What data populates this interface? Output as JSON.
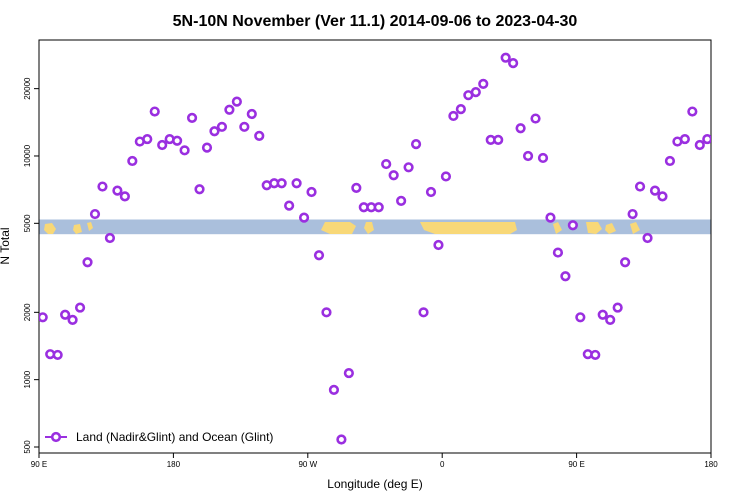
{
  "chart_data": {
    "type": "scatter",
    "title": "5N-10N November (Ver 11.1)   2014-09-06 to 2023-04-30",
    "xlabel": "Longitude (deg E)",
    "ylabel": "N Total",
    "y_scale": "log",
    "ylim": [
      470,
      33000
    ],
    "xlim": [
      0,
      450
    ],
    "x_ticks": [
      {
        "value": 0,
        "label": "90 E"
      },
      {
        "value": 90,
        "label": "180"
      },
      {
        "value": 180,
        "label": "90 W"
      },
      {
        "value": 270,
        "label": "0"
      },
      {
        "value": 360,
        "label": "90 E"
      },
      {
        "value": 450,
        "label": "180"
      }
    ],
    "y_ticks": [
      {
        "value": 500,
        "label": "500"
      },
      {
        "value": 1000,
        "label": "1000"
      },
      {
        "value": 2000,
        "label": "2000"
      },
      {
        "value": 5000,
        "label": "5000"
      },
      {
        "value": 10000,
        "label": "10000"
      },
      {
        "value": 20000,
        "label": "20000"
      }
    ],
    "grid": false,
    "legend_position": "bottom-left",
    "map_band": {
      "y_low": 4470,
      "y_high": 5200,
      "ocean_color": "#aabfdc",
      "land_color": "#f8d878"
    },
    "series": [
      {
        "name": "Land (Nadir&Glint) and Ocean (Glint)",
        "color": "#9a2fe0",
        "x": [
          2.5,
          7.5,
          12.5,
          17.5,
          22.5,
          27.5,
          32.5,
          37.5,
          42.5,
          47.5,
          52.5,
          57.5,
          62.5,
          67.5,
          72.5,
          77.5,
          82.5,
          87.5,
          92.5,
          97.5,
          102.5,
          107.5,
          112.5,
          117.5,
          122.5,
          127.5,
          132.5,
          137.5,
          142.5,
          147.5,
          152.5,
          157.5,
          162.5,
          167.5,
          172.5,
          177.5,
          182.5,
          187.5,
          192.5,
          197.5,
          202.5,
          207.5,
          212.5,
          217.5,
          222.5,
          227.5,
          232.5,
          237.5,
          242.5,
          247.5,
          252.5,
          257.5,
          262.5,
          267.5,
          272.5,
          277.5,
          282.5,
          287.5,
          292.5,
          297.5,
          302.5,
          307.5,
          312.5,
          317.5,
          322.5,
          327.5,
          332.5,
          337.5,
          342.5,
          347.5,
          352.5,
          357.5,
          362.5,
          367.5,
          372.5,
          377.5,
          382.5,
          387.5,
          392.5,
          397.5,
          402.5,
          407.5,
          412.5,
          417.5,
          422.5,
          427.5,
          432.5,
          437.5,
          442.5,
          447.5
        ],
        "y": [
          1900,
          1300,
          1290,
          1950,
          1850,
          2100,
          3350,
          5500,
          7300,
          4300,
          7000,
          6600,
          9500,
          11600,
          11900,
          15800,
          11200,
          11900,
          11700,
          10600,
          14800,
          7100,
          10900,
          12900,
          13500,
          16100,
          17500,
          13500,
          15400,
          12300,
          7400,
          7550,
          7550,
          6000,
          7550,
          5300,
          6900,
          3600,
          2000,
          900,
          540,
          1070,
          7200,
          5900,
          5900,
          5900,
          9200,
          8200,
          6300,
          8900,
          11300,
          2000,
          6900,
          4000,
          8100,
          15100,
          16200,
          18700,
          19300,
          21000,
          11800,
          11800,
          27500,
          26000,
          13300,
          10000,
          14700,
          9800,
          5300,
          3700,
          2900,
          4900,
          1900,
          1300,
          1290,
          1950,
          1850,
          2100,
          3350,
          5500,
          7300,
          4300,
          7000,
          6600,
          9500,
          11600,
          11900,
          15800,
          11200,
          11900
        ]
      }
    ]
  }
}
